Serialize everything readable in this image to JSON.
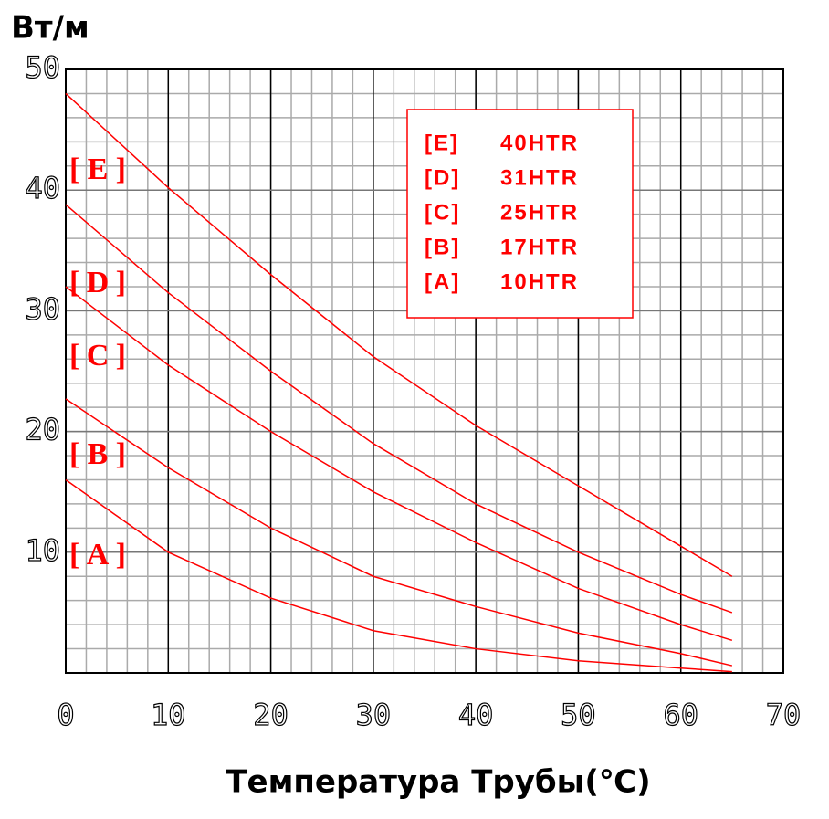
{
  "chart_data": {
    "type": "line",
    "y_label": "Вт/м",
    "x_label": "Температура Трубы(℃)",
    "x": [
      0,
      10,
      20,
      30,
      40,
      50,
      60,
      65
    ],
    "series": [
      {
        "name": "[E]",
        "model": "40HTR",
        "color": "#ff0000",
        "values": [
          48,
          40.2,
          33,
          26.2,
          20.5,
          15.5,
          10.5,
          8
        ]
      },
      {
        "name": "[D]",
        "model": "31HTR",
        "color": "#ff0000",
        "values": [
          38.8,
          31.5,
          25,
          19,
          14,
          10,
          6.5,
          5
        ]
      },
      {
        "name": "[C]",
        "model": "25HTR",
        "color": "#ff0000",
        "values": [
          32,
          25.5,
          20,
          15,
          10.8,
          7,
          4,
          2.7
        ]
      },
      {
        "name": "[B]",
        "model": "17HTR",
        "color": "#ff0000",
        "values": [
          22.7,
          17,
          12,
          8,
          5.5,
          3.3,
          1.6,
          0.6
        ]
      },
      {
        "name": "[A]",
        "model": "10HTR",
        "color": "#ff0000",
        "values": [
          16,
          10,
          6.2,
          3.5,
          2,
          1,
          0.4,
          0.1
        ]
      }
    ],
    "xlim": [
      0,
      70
    ],
    "xticks": [
      0,
      10,
      20,
      30,
      40,
      50,
      60,
      70
    ],
    "ylim": [
      0,
      50
    ],
    "yticks": [
      10,
      20,
      30,
      40,
      50
    ],
    "grid": true
  }
}
